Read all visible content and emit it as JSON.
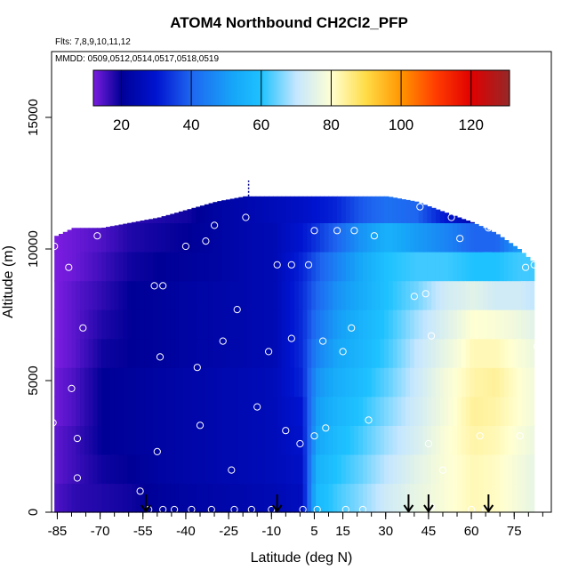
{
  "chart_data": {
    "type": "heatmap",
    "title": "ATOM4 Northbound CH2Cl2_PFP",
    "flights_label": "Flts: 7,8,9,10,11,12",
    "dates_label": "MMDD: 0509,0512,0514,0517,0518,0519",
    "xlabel": "Latitude (deg N)",
    "ylabel": "Altitude (m)",
    "xlim": [
      -87,
      88
    ],
    "ylim": [
      0,
      17500
    ],
    "x_ticks": [
      -85,
      -70,
      -55,
      -40,
      -25,
      -10,
      5,
      15,
      30,
      45,
      60,
      75
    ],
    "x_tick_labels": [
      "-85",
      "-70",
      "-55",
      "-40",
      "-25",
      "-10",
      "5",
      "15",
      "30",
      "45",
      "60",
      "75"
    ],
    "x_minor_step": 5,
    "y_ticks": [
      0,
      5000,
      10000,
      15000
    ],
    "y_tick_labels": [
      "0",
      "5000",
      "10000",
      "15000"
    ],
    "colorbar": {
      "min": 12,
      "max": 131,
      "ticks": [
        20,
        40,
        60,
        80,
        100,
        120
      ],
      "tick_labels": [
        "20",
        "40",
        "60",
        "80",
        "100",
        "120"
      ],
      "stops": [
        {
          "v": 12,
          "c": "#7b1de0"
        },
        {
          "v": 20,
          "c": "#000096"
        },
        {
          "v": 30,
          "c": "#0014d0"
        },
        {
          "v": 40,
          "c": "#1e66f0"
        },
        {
          "v": 52,
          "c": "#16a6f8"
        },
        {
          "v": 60,
          "c": "#1ec2ff"
        },
        {
          "v": 70,
          "c": "#c4e6ff"
        },
        {
          "v": 80,
          "c": "#ffffd2"
        },
        {
          "v": 90,
          "c": "#ffdc46"
        },
        {
          "v": 100,
          "c": "#ff9600"
        },
        {
          "v": 110,
          "c": "#ff3c00"
        },
        {
          "v": 120,
          "c": "#e10000"
        },
        {
          "v": 131,
          "c": "#962828"
        }
      ]
    },
    "field_columns": [
      {
        "x": -86,
        "top": 10500,
        "values": [
          15,
          14,
          14,
          13,
          13,
          12,
          12,
          12,
          12,
          12,
          12
        ]
      },
      {
        "x": -80,
        "top": 10800,
        "values": [
          17,
          16,
          16,
          15,
          15,
          14,
          14,
          14,
          13,
          13,
          13
        ]
      },
      {
        "x": -70,
        "top": 10800,
        "values": [
          18,
          19,
          20,
          20,
          20,
          19,
          18,
          17,
          16,
          15,
          15
        ]
      },
      {
        "x": -60,
        "top": 11000,
        "values": [
          19,
          20,
          21,
          21,
          21,
          20,
          20,
          20,
          19,
          18,
          17
        ]
      },
      {
        "x": -50,
        "top": 11200,
        "values": [
          21,
          22,
          22,
          22,
          22,
          21,
          21,
          21,
          20,
          19,
          18
        ]
      },
      {
        "x": -40,
        "top": 11500,
        "values": [
          22,
          23,
          23,
          23,
          23,
          22,
          22,
          22,
          21,
          20,
          19
        ]
      },
      {
        "x": -30,
        "top": 11800,
        "values": [
          23,
          24,
          24,
          24,
          24,
          23,
          23,
          23,
          22,
          22,
          22
        ]
      },
      {
        "x": -20,
        "top": 12000,
        "values": [
          24,
          25,
          25,
          25,
          25,
          24,
          24,
          24,
          24,
          24,
          24
        ]
      },
      {
        "x": -10,
        "top": 12000,
        "values": [
          25,
          26,
          26,
          26,
          26,
          25,
          25,
          25,
          25,
          25,
          26
        ]
      },
      {
        "x": 0,
        "top": 12000,
        "values": [
          27,
          28,
          29,
          30,
          32,
          33,
          33,
          33,
          32,
          30,
          28
        ]
      },
      {
        "x": 5,
        "top": 12000,
        "values": [
          57,
          55,
          52,
          50,
          48,
          45,
          42,
          40,
          38,
          34,
          30
        ]
      },
      {
        "x": 12,
        "top": 12000,
        "values": [
          62,
          60,
          58,
          56,
          54,
          52,
          50,
          48,
          45,
          40,
          32
        ]
      },
      {
        "x": 20,
        "top": 12000,
        "values": [
          66,
          64,
          62,
          60,
          58,
          56,
          55,
          53,
          52,
          48,
          38
        ]
      },
      {
        "x": 30,
        "top": 12000,
        "values": [
          72,
          70,
          68,
          66,
          64,
          62,
          61,
          60,
          60,
          55,
          42
        ]
      },
      {
        "x": 40,
        "top": 11800,
        "values": [
          76,
          75,
          73,
          72,
          71,
          70,
          68,
          65,
          62,
          50,
          40
        ]
      },
      {
        "x": 50,
        "top": 11400,
        "values": [
          79,
          79,
          79,
          78,
          78,
          76,
          74,
          72,
          62,
          46,
          30
        ]
      },
      {
        "x": 60,
        "top": 11000,
        "values": [
          82,
          82,
          83,
          84,
          83,
          82,
          80,
          75,
          60,
          40,
          25
        ]
      },
      {
        "x": 68,
        "top": 10600,
        "values": [
          81,
          81,
          82,
          83,
          84,
          82,
          79,
          72,
          60,
          40,
          28
        ]
      },
      {
        "x": 76,
        "top": 10000,
        "values": [
          78,
          78,
          79,
          80,
          80,
          79,
          77,
          72,
          62,
          50,
          48
        ]
      },
      {
        "x": 81,
        "top": 9500,
        "values": [
          76,
          76,
          77,
          78,
          78,
          77,
          75,
          70,
          62,
          55,
          50
        ]
      }
    ],
    "sample_points": [
      [
        -86.5,
        3400
      ],
      [
        -86,
        10100
      ],
      [
        -81,
        9300
      ],
      [
        -80,
        4700
      ],
      [
        -78,
        1300
      ],
      [
        -78,
        2800
      ],
      [
        -76,
        7000
      ],
      [
        -71,
        10500
      ],
      [
        -56,
        800
      ],
      [
        -53,
        100
      ],
      [
        -51,
        8600
      ],
      [
        -50,
        2300
      ],
      [
        -49,
        5900
      ],
      [
        -48,
        8600
      ],
      [
        -48,
        100
      ],
      [
        -44,
        100
      ],
      [
        -40,
        10100
      ],
      [
        -38,
        100
      ],
      [
        -36,
        5500
      ],
      [
        -35,
        3300
      ],
      [
        -33,
        10300
      ],
      [
        -31,
        100
      ],
      [
        -30,
        10900
      ],
      [
        -27,
        6500
      ],
      [
        -24,
        1600
      ],
      [
        -23,
        100
      ],
      [
        -22,
        7700
      ],
      [
        -19,
        11200
      ],
      [
        -17,
        100
      ],
      [
        -15,
        4000
      ],
      [
        -11,
        6100
      ],
      [
        -10,
        100
      ],
      [
        -8,
        9400
      ],
      [
        -5,
        3100
      ],
      [
        -3,
        6600
      ],
      [
        -3,
        9400
      ],
      [
        0,
        2600
      ],
      [
        1,
        100
      ],
      [
        3,
        9400
      ],
      [
        5,
        2900
      ],
      [
        5,
        10700
      ],
      [
        6,
        100
      ],
      [
        8,
        6500
      ],
      [
        9,
        3200
      ],
      [
        13,
        10700
      ],
      [
        15,
        6100
      ],
      [
        16,
        100
      ],
      [
        18,
        7000
      ],
      [
        19,
        10700
      ],
      [
        22,
        100
      ],
      [
        24,
        3500
      ],
      [
        26,
        10500
      ],
      [
        40,
        8200
      ],
      [
        42,
        11600
      ],
      [
        44,
        8300
      ],
      [
        45,
        2600
      ],
      [
        46,
        200
      ],
      [
        46,
        6700
      ],
      [
        50,
        1600
      ],
      [
        53,
        11200
      ],
      [
        56,
        10400
      ],
      [
        60,
        100
      ],
      [
        63,
        2900
      ],
      [
        65,
        100
      ],
      [
        66,
        10800
      ],
      [
        72,
        10900
      ],
      [
        77,
        2900
      ],
      [
        79,
        9300
      ],
      [
        82,
        9400
      ],
      [
        83,
        6300
      ],
      [
        85,
        100
      ]
    ],
    "arrows_lat": [
      -54,
      -8,
      38,
      45,
      66
    ],
    "tropopause_marker": {
      "x": -18,
      "y_from": 12000,
      "y_to": 12600
    }
  }
}
